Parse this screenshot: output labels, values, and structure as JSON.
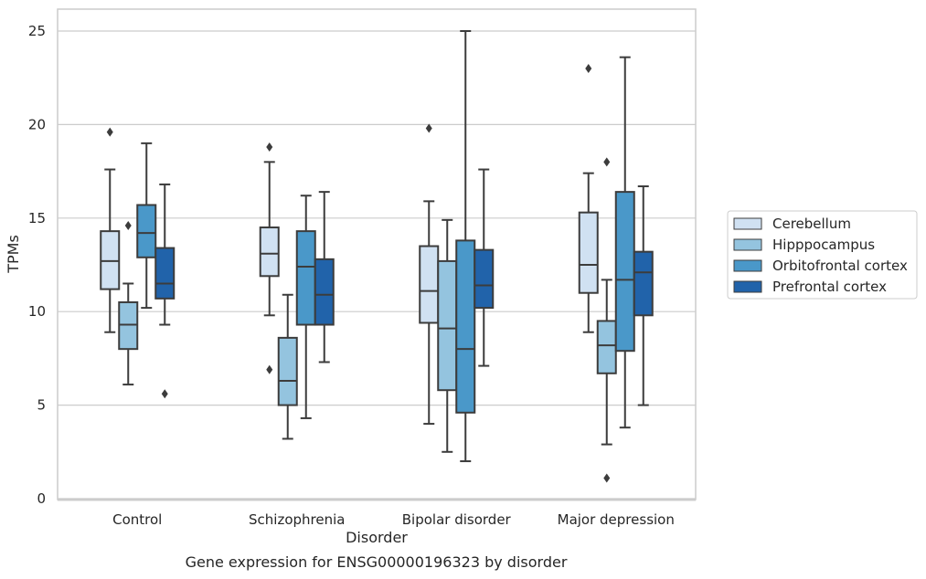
{
  "chart_data": {
    "type": "box",
    "title": "",
    "caption": "Gene expression for ENSG00000196323 by disorder",
    "xlabel": "Disorder",
    "ylabel": "TPMs",
    "ylim": [
      0,
      26.3
    ],
    "yticks": [
      0,
      5,
      10,
      15,
      20,
      25
    ],
    "grid": "horizontal",
    "legend_position": "right",
    "categories": [
      "Control",
      "Schizophrenia",
      "Bipolar disorder",
      "Major depression"
    ],
    "series": [
      {
        "name": "Cerebellum",
        "color": "#d0e1f2",
        "boxes": [
          {
            "whislo": 8.9,
            "q1": 11.2,
            "med": 12.7,
            "q3": 14.3,
            "whishi": 17.6,
            "fliers": [
              19.6
            ]
          },
          {
            "whislo": 9.8,
            "q1": 11.9,
            "med": 13.1,
            "q3": 14.5,
            "whishi": 18.0,
            "fliers": [
              18.8,
              6.9
            ]
          },
          {
            "whislo": 4.0,
            "q1": 9.4,
            "med": 11.1,
            "q3": 13.5,
            "whishi": 15.9,
            "fliers": [
              19.8
            ]
          },
          {
            "whislo": 8.9,
            "q1": 11.0,
            "med": 12.5,
            "q3": 15.3,
            "whishi": 17.4,
            "fliers": [
              23.0
            ]
          }
        ]
      },
      {
        "name": "Hipppocampus",
        "color": "#94c4df",
        "boxes": [
          {
            "whislo": 6.1,
            "q1": 8.0,
            "med": 9.3,
            "q3": 10.5,
            "whishi": 11.5,
            "fliers": [
              14.6
            ]
          },
          {
            "whislo": 3.2,
            "q1": 5.0,
            "med": 6.3,
            "q3": 8.6,
            "whishi": 10.9,
            "fliers": []
          },
          {
            "whislo": 2.5,
            "q1": 5.8,
            "med": 9.1,
            "q3": 12.7,
            "whishi": 14.9,
            "fliers": []
          },
          {
            "whislo": 2.9,
            "q1": 6.7,
            "med": 8.2,
            "q3": 9.5,
            "whishi": 11.7,
            "fliers": [
              18.0,
              1.1
            ]
          }
        ]
      },
      {
        "name": "Orbitofrontal cortex",
        "color": "#4a98c9",
        "boxes": [
          {
            "whislo": 10.2,
            "q1": 12.9,
            "med": 14.2,
            "q3": 15.7,
            "whishi": 19.0,
            "fliers": []
          },
          {
            "whislo": 4.3,
            "q1": 9.3,
            "med": 12.4,
            "q3": 14.3,
            "whishi": 16.2,
            "fliers": []
          },
          {
            "whislo": 2.0,
            "q1": 4.6,
            "med": 8.0,
            "q3": 13.8,
            "whishi": 25.0,
            "fliers": []
          },
          {
            "whislo": 3.8,
            "q1": 7.9,
            "med": 11.7,
            "q3": 16.4,
            "whishi": 23.6,
            "fliers": []
          }
        ]
      },
      {
        "name": "Prefrontal cortex",
        "color": "#2163aa",
        "boxes": [
          {
            "whislo": 9.3,
            "q1": 10.7,
            "med": 11.5,
            "q3": 13.4,
            "whishi": 16.8,
            "fliers": [
              5.6
            ]
          },
          {
            "whislo": 7.3,
            "q1": 9.3,
            "med": 10.9,
            "q3": 12.8,
            "whishi": 16.4,
            "fliers": []
          },
          {
            "whislo": 7.1,
            "q1": 10.2,
            "med": 11.4,
            "q3": 13.3,
            "whishi": 17.6,
            "fliers": []
          },
          {
            "whislo": 5.0,
            "q1": 9.8,
            "med": 12.1,
            "q3": 13.2,
            "whishi": 16.7,
            "fliers": []
          }
        ]
      }
    ]
  }
}
